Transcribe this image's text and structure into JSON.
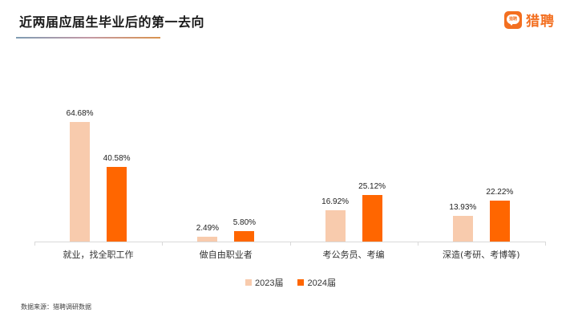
{
  "header": {
    "title": "近两届应届生毕业后的第一去向",
    "logo_icon_text": "猎聘",
    "logo_text": "猎聘"
  },
  "legend": {
    "items": [
      {
        "label": "2023届",
        "color": "#f8cbad"
      },
      {
        "label": "2024届",
        "color": "#ff6600"
      }
    ]
  },
  "footer": {
    "source": "数据来源：猎聘调研数据"
  },
  "chart_data": {
    "type": "bar",
    "title": "近两届应届生毕业后的第一去向",
    "xlabel": "",
    "ylabel": "",
    "categories": [
      "就业，找全职工作",
      "做自由职业者",
      "考公务员、考编",
      "深造(考研、考博等)"
    ],
    "series": [
      {
        "name": "2023届",
        "color": "#f8cbad",
        "values": [
          64.68,
          2.49,
          16.92,
          13.93
        ],
        "labels": [
          "64.68%",
          "2.49%",
          "16.92%",
          "13.93%"
        ]
      },
      {
        "name": "2024届",
        "color": "#ff6600",
        "values": [
          40.58,
          5.8,
          25.12,
          22.22
        ],
        "labels": [
          "40.58%",
          "5.80%",
          "25.12%",
          "22.22%"
        ]
      }
    ],
    "ylim": [
      0,
      70
    ],
    "grid": false,
    "legend_position": "bottom",
    "data_labels": true
  }
}
